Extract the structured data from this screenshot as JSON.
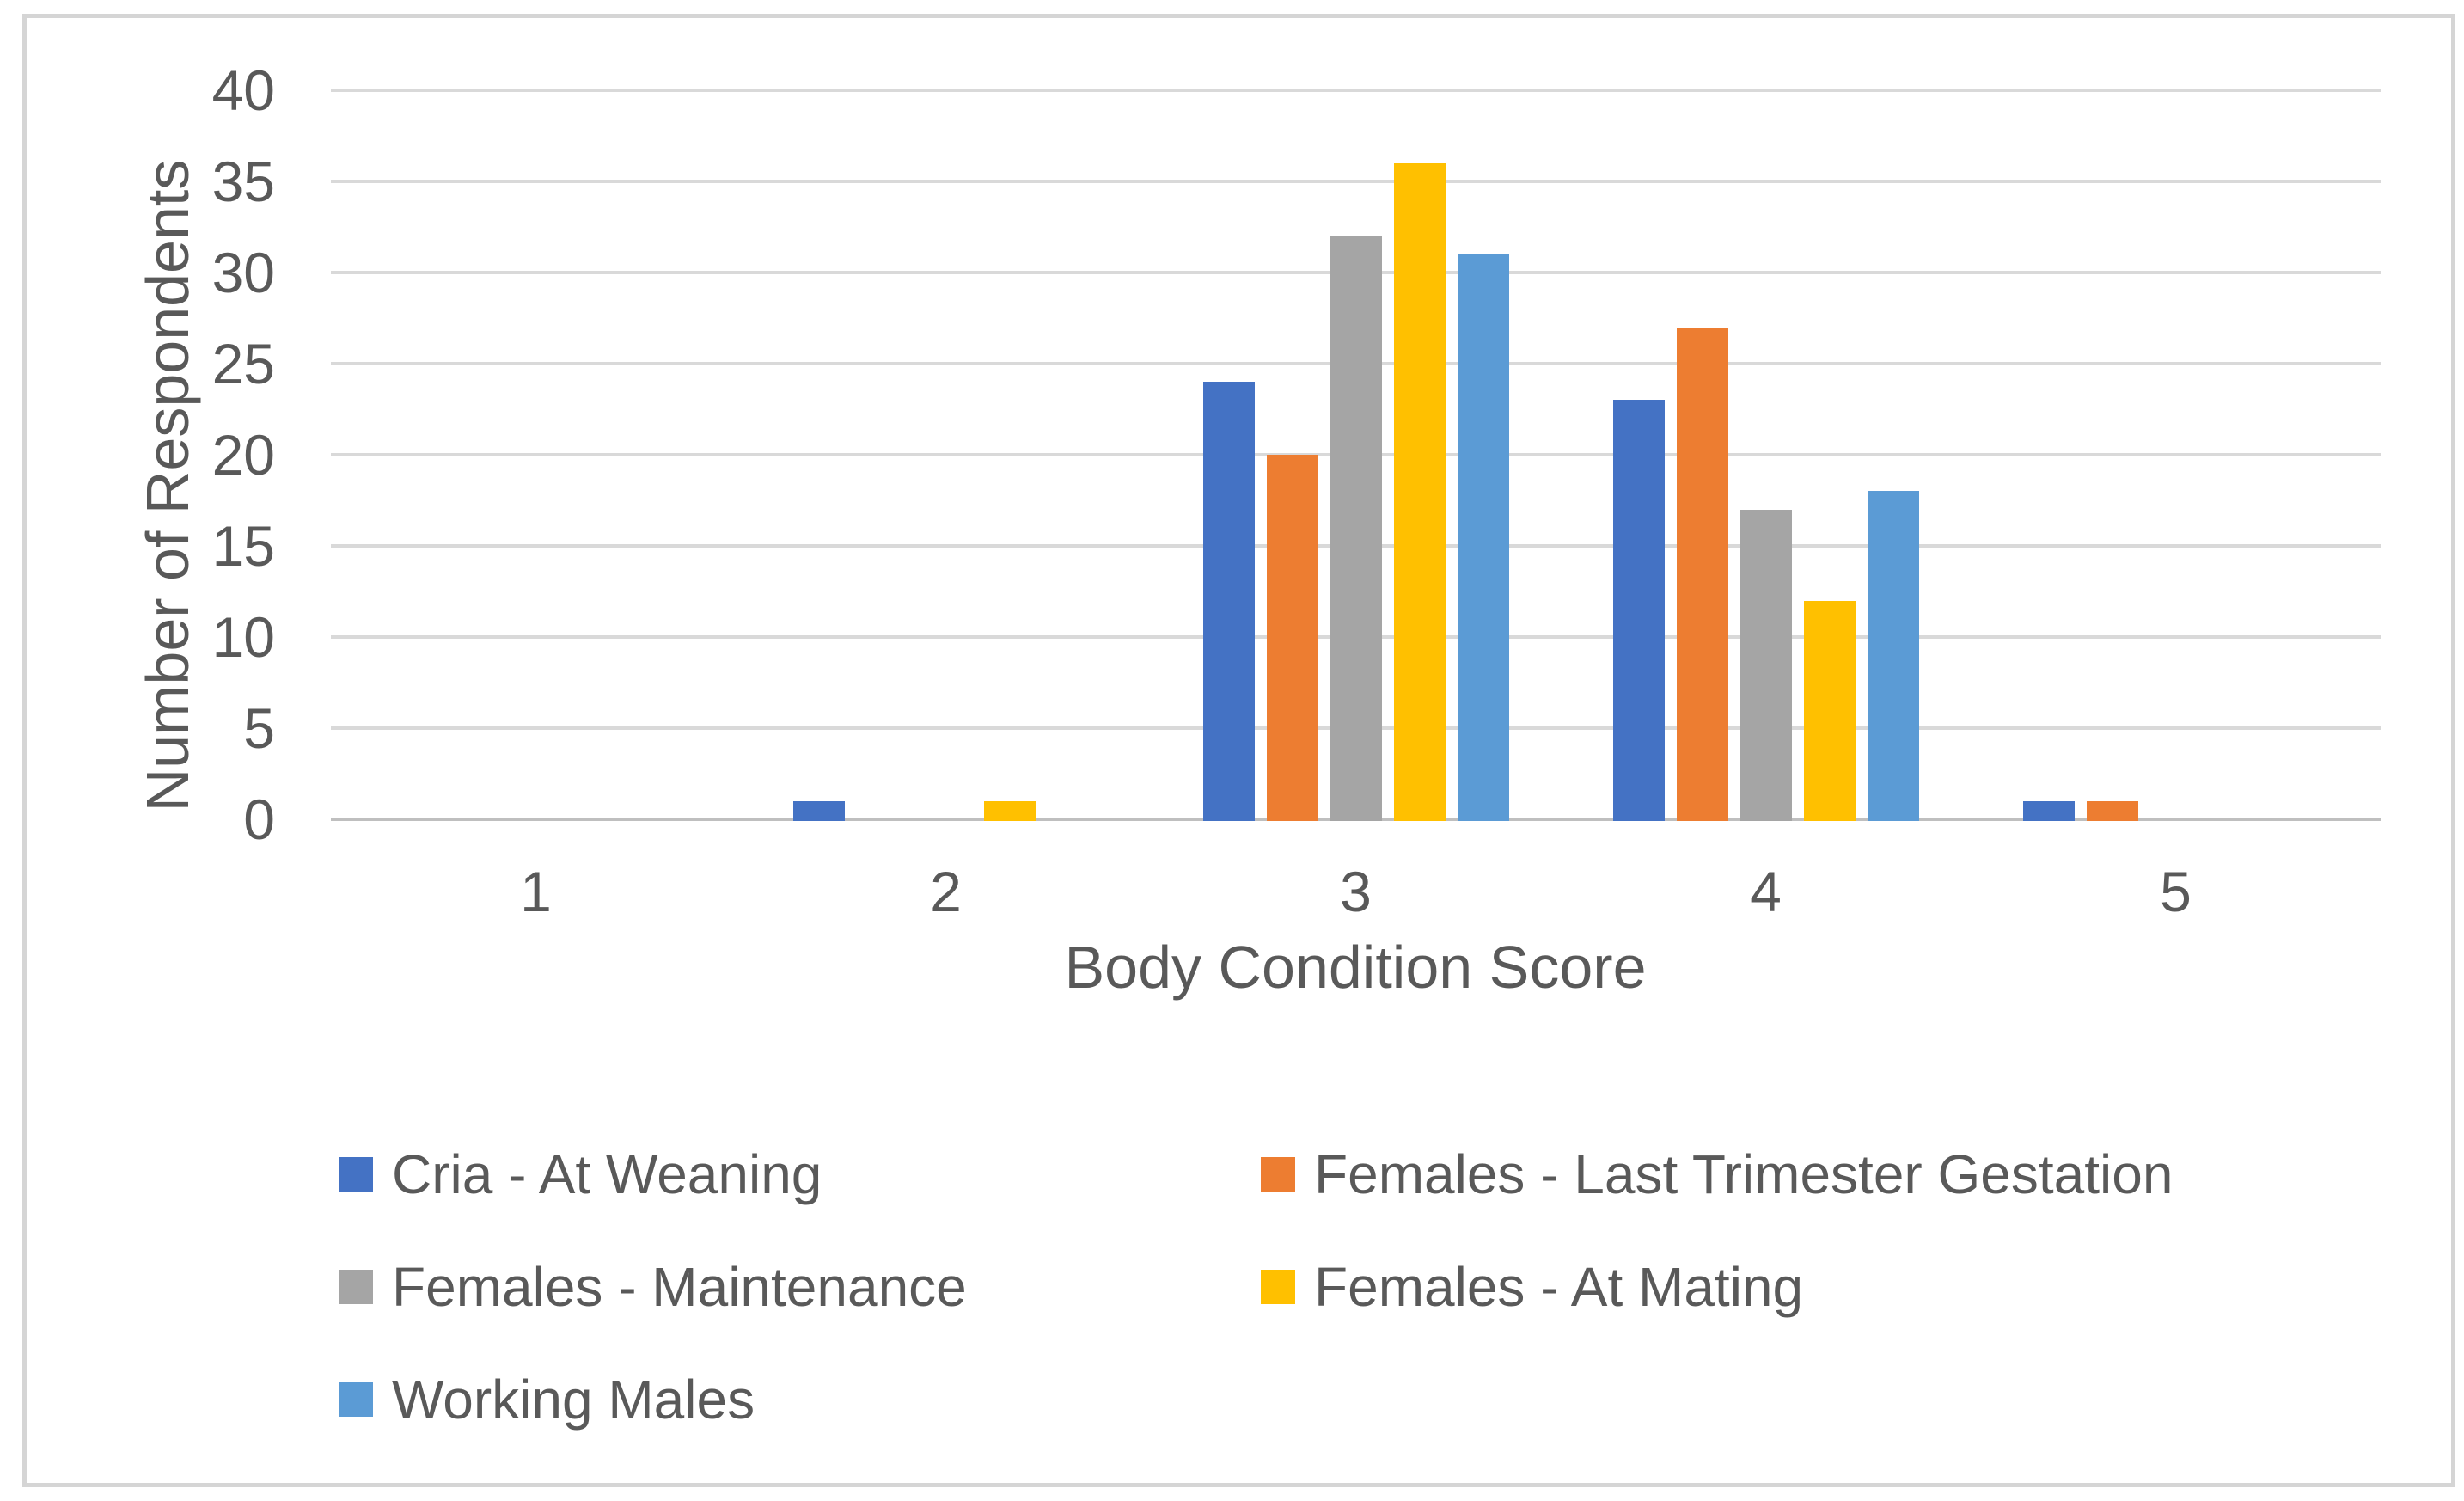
{
  "chart_data": {
    "type": "bar",
    "title": "",
    "xlabel": "Body Condition Score",
    "ylabel": "Number of Respondents",
    "categories": [
      "1",
      "2",
      "3",
      "4",
      "5"
    ],
    "series": [
      {
        "name": "Cria - At Weaning",
        "color": "#4472C4",
        "values": [
          0,
          1,
          24,
          23,
          1
        ]
      },
      {
        "name": "Females - Last Trimester Gestation",
        "color": "#ED7D31",
        "values": [
          0,
          0,
          20,
          27,
          1
        ]
      },
      {
        "name": "Females - Maintenance",
        "color": "#A5A5A5",
        "values": [
          0,
          0,
          32,
          17,
          0
        ]
      },
      {
        "name": "Females - At Mating",
        "color": "#FFC000",
        "values": [
          0,
          1,
          36,
          12,
          0
        ]
      },
      {
        "name": "Working Males",
        "color": "#5B9BD5",
        "values": [
          0,
          0,
          31,
          18,
          0
        ]
      }
    ],
    "ylim": [
      0,
      40
    ],
    "yticks": [
      0,
      5,
      10,
      15,
      20,
      25,
      30,
      35,
      40
    ],
    "grid": true,
    "legend_position": "bottom"
  },
  "colors": {
    "text": "#595959",
    "gridline": "#D9D9D9",
    "axis_line": "#BFBFBF",
    "chart_border": "#D5D5D5",
    "background": "#FFFFFF"
  }
}
